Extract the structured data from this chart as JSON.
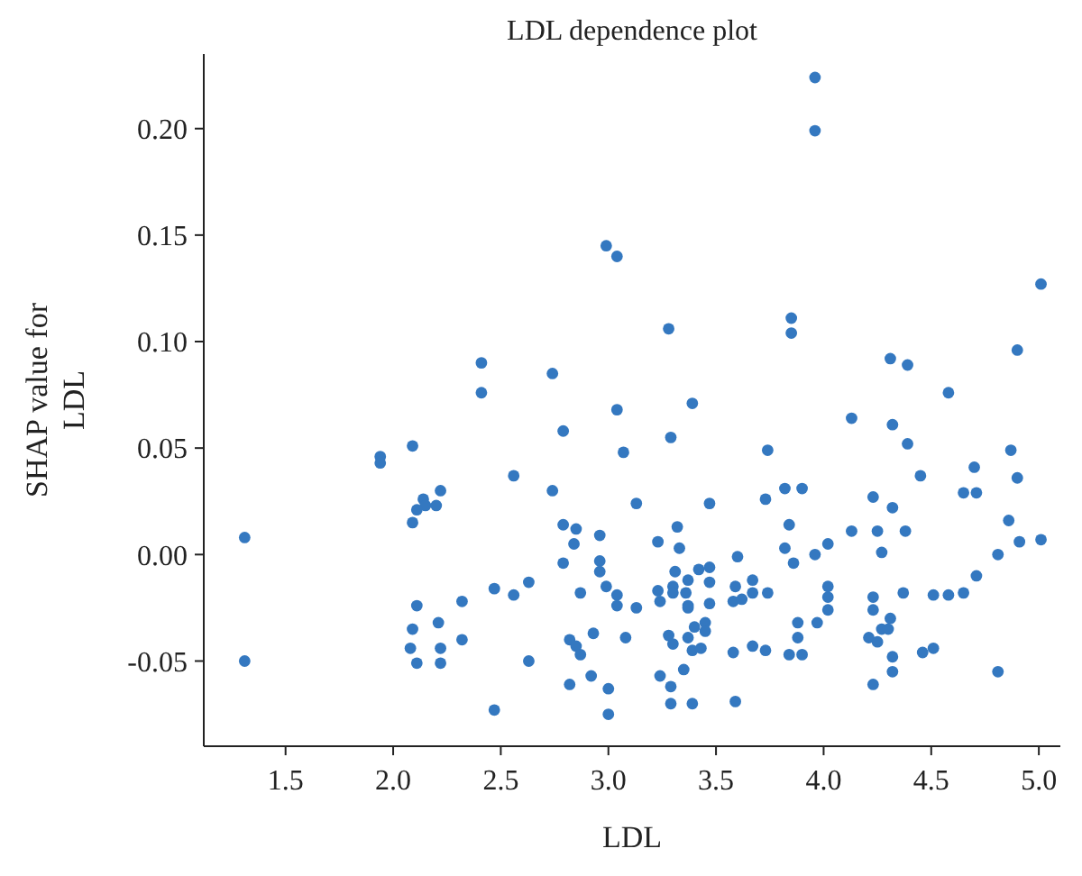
{
  "chart_data": {
    "type": "scatter",
    "title": "LDL dependence plot",
    "xlabel": "LDL",
    "ylabel": "SHAP value for LDL",
    "marker": "circle",
    "grid": false,
    "xlim": [
      1.12,
      5.1
    ],
    "ylim": [
      -0.09,
      0.235
    ],
    "xticks": [
      {
        "value": 1.5,
        "label": "1.5"
      },
      {
        "value": 2,
        "label": "2.0"
      },
      {
        "value": 2.5,
        "label": "2.5"
      },
      {
        "value": 3,
        "label": "3.0"
      },
      {
        "value": 3.5,
        "label": "3.5"
      },
      {
        "value": 4,
        "label": "4.0"
      },
      {
        "value": 4.5,
        "label": "4.5"
      },
      {
        "value": 5,
        "label": "5.0"
      }
    ],
    "yticks": [
      {
        "value": -0.05,
        "label": "-0.05"
      },
      {
        "value": 0,
        "label": "0.00"
      },
      {
        "value": 0.05,
        "label": "0.05"
      },
      {
        "value": 0.1,
        "label": "0.10"
      },
      {
        "value": 0.15,
        "label": "0.15"
      },
      {
        "value": 0.2,
        "label": "0.20"
      }
    ],
    "series": [
      {
        "color": "#3478c0",
        "x": [
          2.41,
          2.74,
          2.99,
          3.04,
          3.96,
          3.96,
          3.28,
          3.85,
          3.85,
          4.31,
          4.39,
          4.9,
          5.01,
          2.41,
          3.04,
          2.79,
          1.94,
          1.94,
          2.09,
          2.56,
          2.74,
          2.22,
          2.14,
          2.15,
          2.11,
          2.2,
          2.09,
          2.79,
          2.85,
          2.96,
          2.84,
          1.31,
          1.31,
          2.79,
          2.96,
          2.96,
          2.99,
          2.47,
          2.63,
          2.56,
          2.87,
          2.11,
          2.32,
          2.09,
          2.21,
          2.32,
          2.82,
          2.85,
          2.93,
          2.08,
          2.22,
          2.87,
          2.11,
          2.22,
          2.63,
          2.92,
          2.82,
          3.0,
          2.47,
          3.0,
          3.39,
          3.29,
          3.07,
          3.74,
          4.13,
          4.32,
          4.39,
          4.58,
          4.45,
          4.87,
          4.7,
          4.9,
          4.65,
          4.71,
          3.82,
          3.9,
          3.73,
          3.47,
          3.13,
          4.23,
          4.32,
          3.84,
          3.32,
          4.13,
          4.25,
          4.38,
          4.86,
          4.91,
          5.01,
          3.23,
          3.33,
          3.82,
          3.6,
          3.96,
          4.02,
          4.27,
          4.81,
          3.86,
          3.31,
          3.42,
          3.47,
          3.37,
          3.47,
          3.67,
          4.71,
          3.3,
          3.3,
          3.23,
          3.36,
          3.59,
          3.67,
          3.74,
          4.02,
          4.02,
          3.04,
          3.04,
          3.24,
          3.47,
          3.58,
          3.62,
          4.37,
          4.51,
          4.58,
          4.65,
          4.23,
          3.37,
          3.37,
          3.13,
          4.02,
          4.23,
          3.4,
          3.45,
          3.45,
          3.88,
          3.97,
          4.31,
          4.27,
          4.3,
          3.28,
          3.3,
          3.37,
          3.08,
          3.88,
          4.21,
          4.25,
          3.39,
          3.43,
          3.67,
          3.73,
          3.58,
          3.84,
          3.9,
          4.32,
          4.46,
          4.51,
          3.35,
          4.32,
          4.81,
          3.24,
          3.29,
          4.23,
          3.29,
          3.39,
          3.59
        ],
        "values": [
          0.09,
          0.085,
          0.145,
          0.14,
          0.224,
          0.199,
          0.106,
          0.111,
          0.104,
          0.092,
          0.089,
          0.096,
          0.127,
          0.076,
          0.068,
          0.058,
          0.046,
          0.043,
          0.051,
          0.037,
          0.03,
          0.03,
          0.026,
          0.023,
          0.021,
          0.023,
          0.015,
          0.014,
          0.012,
          0.009,
          0.005,
          0.008,
          -0.05,
          -0.004,
          -0.003,
          -0.008,
          -0.015,
          -0.016,
          -0.013,
          -0.019,
          -0.018,
          -0.024,
          -0.022,
          -0.035,
          -0.032,
          -0.04,
          -0.04,
          -0.043,
          -0.037,
          -0.044,
          -0.044,
          -0.047,
          -0.051,
          -0.051,
          -0.05,
          -0.057,
          -0.061,
          -0.063,
          -0.073,
          -0.075,
          0.071,
          0.055,
          0.048,
          0.049,
          0.064,
          0.061,
          0.052,
          0.076,
          0.037,
          0.049,
          0.041,
          0.036,
          0.029,
          0.029,
          0.031,
          0.031,
          0.026,
          0.024,
          0.024,
          0.027,
          0.022,
          0.014,
          0.013,
          0.011,
          0.011,
          0.011,
          0.016,
          0.006,
          0.007,
          0.006,
          0.003,
          0.003,
          -0.001,
          0.0,
          0.005,
          0.001,
          0.0,
          -0.004,
          -0.008,
          -0.007,
          -0.006,
          -0.012,
          -0.013,
          -0.012,
          -0.01,
          -0.015,
          -0.018,
          -0.017,
          -0.018,
          -0.015,
          -0.018,
          -0.018,
          -0.015,
          -0.02,
          -0.019,
          -0.024,
          -0.022,
          -0.023,
          -0.022,
          -0.021,
          -0.018,
          -0.019,
          -0.019,
          -0.018,
          -0.02,
          -0.024,
          -0.025,
          -0.025,
          -0.026,
          -0.026,
          -0.034,
          -0.032,
          -0.036,
          -0.032,
          -0.032,
          -0.03,
          -0.035,
          -0.035,
          -0.038,
          -0.042,
          -0.039,
          -0.039,
          -0.039,
          -0.039,
          -0.041,
          -0.045,
          -0.044,
          -0.043,
          -0.045,
          -0.046,
          -0.047,
          -0.047,
          -0.048,
          -0.046,
          -0.044,
          -0.054,
          -0.055,
          -0.055,
          -0.057,
          -0.062,
          -0.061,
          -0.07,
          -0.07,
          -0.069
        ]
      }
    ]
  }
}
